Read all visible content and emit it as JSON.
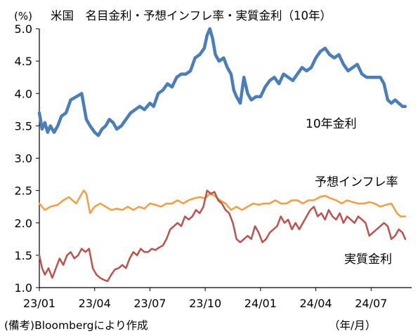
{
  "chart_data": {
    "type": "line",
    "title": "米国　名目金利・予想インフレ率・実質金利（10年）",
    "y_unit_label": "(%)",
    "x_unit_label": "（年/月）",
    "source_note": "(備考)Bloombergにより作成",
    "ylim": [
      1.0,
      5.0
    ],
    "y_ticks": [
      "5.0",
      "4.5",
      "4.0",
      "3.5",
      "3.0",
      "2.5",
      "2.0",
      "1.5",
      "1.0"
    ],
    "y_tick_values": [
      5.0,
      4.5,
      4.0,
      3.5,
      3.0,
      2.5,
      2.0,
      1.5,
      1.0
    ],
    "x_ticks": [
      "23/01",
      "23/04",
      "23/07",
      "23/10",
      "24/01",
      "24/04",
      "24/07"
    ],
    "x_tick_values": [
      0,
      3,
      6,
      9,
      12,
      15,
      18
    ],
    "xlim": [
      0,
      20.2
    ],
    "grid": false,
    "series": [
      {
        "name": "10年金利",
        "color": "#4a7ebb",
        "x": [
          0,
          0.15,
          0.3,
          0.45,
          0.6,
          0.8,
          1.0,
          1.2,
          1.45,
          1.7,
          2.0,
          2.3,
          2.55,
          2.75,
          3.0,
          3.2,
          3.4,
          3.6,
          3.8,
          4.0,
          4.2,
          4.45,
          4.7,
          4.95,
          5.2,
          5.45,
          5.7,
          6.0,
          6.2,
          6.45,
          6.7,
          6.95,
          7.2,
          7.45,
          7.7,
          7.95,
          8.2,
          8.45,
          8.7,
          8.95,
          9.1,
          9.25,
          9.4,
          9.55,
          9.75,
          10.0,
          10.2,
          10.4,
          10.55,
          10.7,
          10.9,
          11.1,
          11.3,
          11.5,
          11.75,
          12.0,
          12.25,
          12.5,
          12.75,
          13.0,
          13.25,
          13.5,
          13.75,
          14.0,
          14.25,
          14.5,
          14.75,
          15.0,
          15.25,
          15.5,
          15.75,
          16.0,
          16.25,
          16.5,
          16.75,
          17.0,
          17.25,
          17.5,
          17.75,
          18.0,
          18.25,
          18.5,
          18.7,
          18.9,
          19.1,
          19.3,
          19.5,
          19.7,
          19.85
        ],
        "values": [
          3.7,
          3.45,
          3.55,
          3.4,
          3.5,
          3.4,
          3.5,
          3.65,
          3.7,
          3.9,
          3.95,
          4.0,
          3.6,
          3.5,
          3.4,
          3.35,
          3.45,
          3.5,
          3.6,
          3.55,
          3.45,
          3.5,
          3.6,
          3.7,
          3.75,
          3.8,
          3.75,
          3.85,
          3.8,
          4.0,
          4.05,
          4.15,
          4.1,
          4.25,
          4.3,
          4.3,
          4.35,
          4.55,
          4.6,
          4.7,
          4.9,
          5.0,
          4.85,
          4.6,
          4.5,
          4.55,
          4.4,
          4.3,
          4.05,
          3.95,
          3.85,
          4.25,
          4.0,
          3.9,
          3.95,
          3.95,
          4.1,
          4.2,
          4.25,
          4.15,
          4.3,
          4.25,
          4.2,
          4.3,
          4.4,
          4.35,
          4.4,
          4.55,
          4.65,
          4.7,
          4.6,
          4.55,
          4.6,
          4.45,
          4.35,
          4.4,
          4.45,
          4.3,
          4.25,
          4.25,
          4.25,
          4.25,
          4.15,
          3.9,
          3.85,
          3.9,
          3.85,
          3.8,
          3.8
        ]
      },
      {
        "name": "予想インフレ率",
        "color": "#f59d3d",
        "x": [
          0,
          0.3,
          0.6,
          1.0,
          1.3,
          1.6,
          1.8,
          2.0,
          2.2,
          2.4,
          2.55,
          2.75,
          3.0,
          3.3,
          3.6,
          3.9,
          4.2,
          4.5,
          4.8,
          5.1,
          5.4,
          5.7,
          6.0,
          6.3,
          6.6,
          6.9,
          7.2,
          7.5,
          7.8,
          8.1,
          8.4,
          8.7,
          9.0,
          9.25,
          9.5,
          9.8,
          10.1,
          10.4,
          10.7,
          11.0,
          11.3,
          11.6,
          11.9,
          12.2,
          12.5,
          12.8,
          13.1,
          13.4,
          13.7,
          14.0,
          14.3,
          14.6,
          14.9,
          15.2,
          15.5,
          15.8,
          16.1,
          16.4,
          16.7,
          17.0,
          17.3,
          17.6,
          17.9,
          18.2,
          18.5,
          18.8,
          19.1,
          19.4,
          19.6,
          19.85
        ],
        "values": [
          2.3,
          2.2,
          2.25,
          2.28,
          2.35,
          2.4,
          2.35,
          2.3,
          2.4,
          2.5,
          2.45,
          2.15,
          2.25,
          2.3,
          2.25,
          2.2,
          2.22,
          2.2,
          2.25,
          2.2,
          2.25,
          2.22,
          2.3,
          2.28,
          2.25,
          2.3,
          2.3,
          2.35,
          2.3,
          2.35,
          2.38,
          2.4,
          2.38,
          2.45,
          2.42,
          2.35,
          2.3,
          2.2,
          2.25,
          2.2,
          2.25,
          2.3,
          2.28,
          2.3,
          2.3,
          2.35,
          2.3,
          2.3,
          2.35,
          2.35,
          2.3,
          2.35,
          2.35,
          2.4,
          2.42,
          2.38,
          2.35,
          2.3,
          2.35,
          2.32,
          2.3,
          2.3,
          2.32,
          2.3,
          2.25,
          2.28,
          2.3,
          2.15,
          2.1,
          2.1
        ]
      },
      {
        "name": "実質金利",
        "color": "#c0504d",
        "x": [
          0,
          0.15,
          0.3,
          0.5,
          0.7,
          0.9,
          1.1,
          1.3,
          1.5,
          1.7,
          1.9,
          2.1,
          2.3,
          2.5,
          2.7,
          2.9,
          3.1,
          3.3,
          3.5,
          3.7,
          3.9,
          4.1,
          4.3,
          4.5,
          4.7,
          4.9,
          5.1,
          5.3,
          5.5,
          5.7,
          5.9,
          6.1,
          6.3,
          6.5,
          6.7,
          6.9,
          7.1,
          7.3,
          7.5,
          7.7,
          7.9,
          8.1,
          8.3,
          8.5,
          8.7,
          8.9,
          9.1,
          9.3,
          9.5,
          9.7,
          9.9,
          10.1,
          10.3,
          10.5,
          10.7,
          10.9,
          11.1,
          11.3,
          11.5,
          11.7,
          11.9,
          12.1,
          12.3,
          12.5,
          12.7,
          12.9,
          13.1,
          13.3,
          13.5,
          13.7,
          13.9,
          14.1,
          14.3,
          14.5,
          14.7,
          14.9,
          15.1,
          15.3,
          15.5,
          15.7,
          15.9,
          16.1,
          16.3,
          16.5,
          16.7,
          16.9,
          17.1,
          17.3,
          17.5,
          17.7,
          17.9,
          18.1,
          18.3,
          18.5,
          18.7,
          18.9,
          19.1,
          19.3,
          19.5,
          19.7,
          19.85
        ],
        "values": [
          1.5,
          1.3,
          1.2,
          1.3,
          1.15,
          1.3,
          1.45,
          1.35,
          1.5,
          1.55,
          1.45,
          1.5,
          1.6,
          1.55,
          1.6,
          1.3,
          1.2,
          1.15,
          1.12,
          1.1,
          1.2,
          1.28,
          1.3,
          1.35,
          1.3,
          1.45,
          1.55,
          1.5,
          1.6,
          1.55,
          1.55,
          1.6,
          1.58,
          1.62,
          1.65,
          1.75,
          1.9,
          1.95,
          2.0,
          1.95,
          2.1,
          2.05,
          2.1,
          2.2,
          2.15,
          2.25,
          2.5,
          2.45,
          2.48,
          2.35,
          2.3,
          2.2,
          2.15,
          2.0,
          1.75,
          1.7,
          1.75,
          1.8,
          1.75,
          1.95,
          1.85,
          1.7,
          1.75,
          1.85,
          1.9,
          1.95,
          2.1,
          2.0,
          2.05,
          1.9,
          2.0,
          1.9,
          2.0,
          2.1,
          2.2,
          2.25,
          2.1,
          2.15,
          2.05,
          2.2,
          2.1,
          2.05,
          2.15,
          2.0,
          2.1,
          2.05,
          2.0,
          2.1,
          2.05,
          2.0,
          1.8,
          1.85,
          1.9,
          1.95,
          2.0,
          1.95,
          1.75,
          1.8,
          1.9,
          1.85,
          1.75
        ]
      }
    ]
  }
}
